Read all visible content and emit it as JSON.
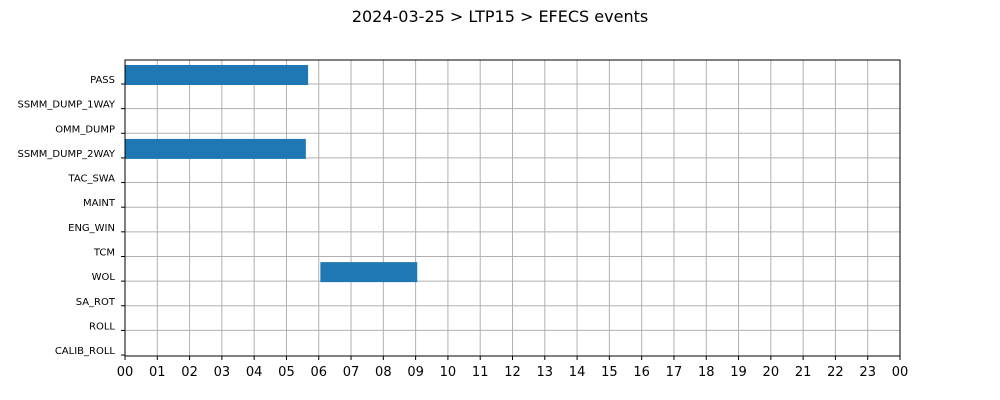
{
  "chart_data": {
    "type": "bar",
    "orientation": "horizontal",
    "title": "2024-03-25 > LTP15 > EFECS events",
    "xlabel": "",
    "ylabel": "",
    "grid": true,
    "xlim": [
      0,
      24
    ],
    "x_tick_labels": [
      "00",
      "01",
      "02",
      "03",
      "04",
      "05",
      "06",
      "07",
      "08",
      "09",
      "10",
      "11",
      "12",
      "13",
      "14",
      "15",
      "16",
      "17",
      "18",
      "19",
      "20",
      "21",
      "22",
      "23",
      "00"
    ],
    "categories": [
      "PASS",
      "SSMM_DUMP_1WAY",
      "OMM_DUMP",
      "SSMM_DUMP_2WAY",
      "TAC_SWA",
      "MAINT",
      "ENG_WIN",
      "TCM",
      "WOL",
      "SA_ROT",
      "ROLL",
      "CALIB_ROLL"
    ],
    "bar_color": "#1f77b4",
    "events": [
      {
        "category": "PASS",
        "start": 0.0,
        "end": 5.67
      },
      {
        "category": "SSMM_DUMP_2WAY",
        "start": 0.0,
        "end": 5.6
      },
      {
        "category": "WOL",
        "start": 6.05,
        "end": 9.05
      }
    ]
  }
}
